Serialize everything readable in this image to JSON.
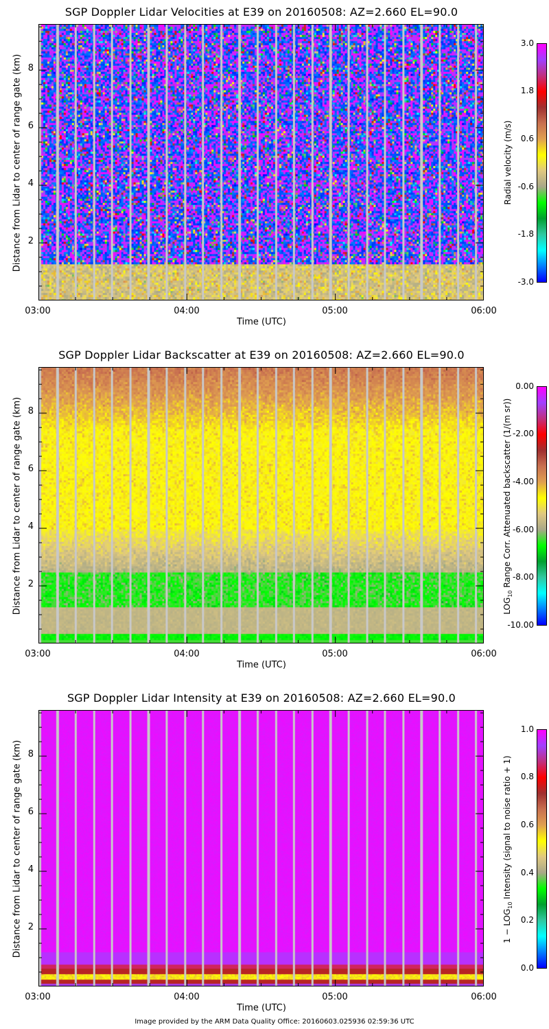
{
  "footer": "Image provided by the ARM Data Quality Office: 20160603.025936 02:59:36 UTC",
  "colormap": [
    "#0000ff",
    "#0080ff",
    "#00ffff",
    "#30c8a0",
    "#00a030",
    "#00ff00",
    "#a8a888",
    "#e0c880",
    "#ffff00",
    "#e0a050",
    "#c87050",
    "#a03030",
    "#ff0000",
    "#c03080",
    "#a040ff",
    "#ff00ff"
  ],
  "chart_data": [
    {
      "type": "heatmap",
      "title": "SGP Doppler Lidar Velocities at E39 on 20160508: AZ=2.660 EL=90.0",
      "xlabel": "Time (UTC)",
      "ylabel": "Distance from Lidar to center of range gate (km)",
      "x_ticks": [
        "03:00",
        "04:00",
        "05:00",
        "06:00"
      ],
      "y_ticks": [
        "2",
        "4",
        "6",
        "8"
      ],
      "xlim": [
        "03:00",
        "06:00"
      ],
      "ylim": [
        0,
        9.6
      ],
      "colorbar": {
        "label": "Radial velocity (m/s)",
        "ticks": [
          "3.0",
          "1.8",
          "0.6",
          "-0.6",
          "-1.8",
          "-3.0"
        ],
        "range": [
          -3.0,
          3.0
        ]
      },
      "pattern": "noise"
    },
    {
      "type": "heatmap",
      "title": "SGP Doppler Lidar Backscatter at E39 on 20160508: AZ=2.660 EL=90.0",
      "xlabel": "Time (UTC)",
      "ylabel": "Distance from Lidar to center of range gate (km)",
      "x_ticks": [
        "03:00",
        "04:00",
        "05:00",
        "06:00"
      ],
      "y_ticks": [
        "2",
        "4",
        "6",
        "8"
      ],
      "xlim": [
        "03:00",
        "06:00"
      ],
      "ylim": [
        0,
        9.6
      ],
      "colorbar": {
        "label_pre": "LOG",
        "label_sub": "10",
        "label_post": " Range Corr. Attenuated backscatter (1/(m sr))",
        "ticks": [
          "0.00",
          "-2.00",
          "-4.00",
          "-6.00",
          "-8.00",
          "-10.00"
        ],
        "range": [
          -10.0,
          0.0
        ]
      },
      "pattern": "backscatter"
    },
    {
      "type": "heatmap",
      "title": "SGP Doppler Lidar Intensity at E39 on 20160508: AZ=2.660 EL=90.0",
      "xlabel": "Time (UTC)",
      "ylabel": "Distance from Lidar to center of range gate (km)",
      "x_ticks": [
        "03:00",
        "04:00",
        "05:00",
        "06:00"
      ],
      "y_ticks": [
        "2",
        "4",
        "6",
        "8"
      ],
      "xlim": [
        "03:00",
        "06:00"
      ],
      "ylim": [
        0,
        9.6
      ],
      "colorbar": {
        "label_pre": "1 − LOG",
        "label_sub": "10",
        "label_post": " Intensity (signal to noise ratio + 1)",
        "ticks": [
          "1.0",
          "0.8",
          "0.6",
          "0.4",
          "0.2",
          "0.0"
        ],
        "range": [
          0.0,
          1.0
        ]
      },
      "pattern": "intensity"
    }
  ]
}
